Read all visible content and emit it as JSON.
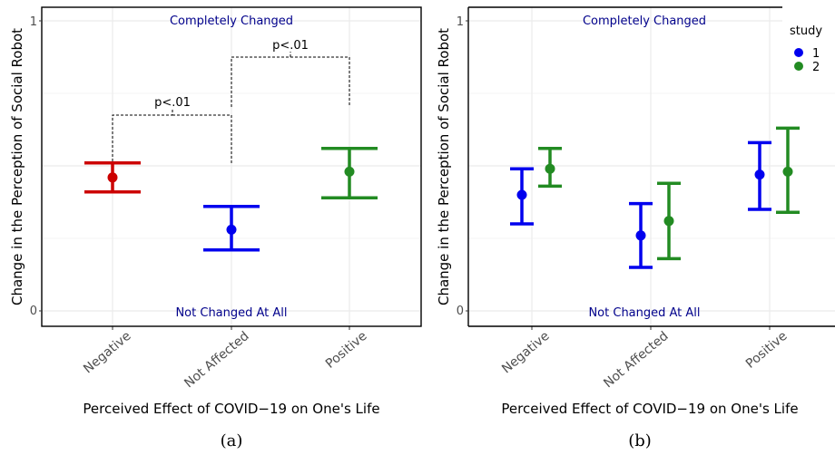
{
  "colors": {
    "red": "#cc0000",
    "blue": "#0000ee",
    "green": "#228b22",
    "annotation": "#00008b"
  },
  "chart_data": [
    {
      "type": "errorbar",
      "caption": "(a)",
      "xlabel": "Perceived Effect of COVID−19 on One's Life",
      "ylabel": "Change in the Perception of Social Robot",
      "categories": [
        "Negative",
        "Not Affected",
        "Positive"
      ],
      "ylim": [
        0,
        1
      ],
      "yticks": [
        "0",
        "1"
      ],
      "grid": true,
      "annotations": {
        "top": "Completely Changed",
        "bottom": "Not Changed At All"
      },
      "series": [
        {
          "points": [
            {
              "category": "Negative",
              "y": 0.46,
              "low": 0.41,
              "high": 0.51,
              "color": "#cc0000"
            },
            {
              "category": "Not Affected",
              "y": 0.28,
              "low": 0.21,
              "high": 0.36,
              "color": "#0000ee"
            },
            {
              "category": "Positive",
              "y": 0.48,
              "low": 0.39,
              "high": 0.56,
              "color": "#228b22"
            }
          ]
        }
      ],
      "significance": [
        {
          "from": "Negative",
          "to": "Not Affected",
          "label": "p<.01"
        },
        {
          "from": "Not Affected",
          "to": "Positive",
          "label": "p<.01"
        }
      ]
    },
    {
      "type": "errorbar",
      "caption": "(b)",
      "xlabel": "Perceived Effect of COVID−19 on One's Life",
      "ylabel": "Change in the Perception of Social Robot",
      "categories": [
        "Negative",
        "Not Affected",
        "Positive"
      ],
      "ylim": [
        0,
        1
      ],
      "yticks": [
        "0",
        "1"
      ],
      "grid": true,
      "annotations": {
        "top": "Completely Changed",
        "bottom": "Not Changed At All"
      },
      "legend": {
        "title": "study",
        "position": "right"
      },
      "series": [
        {
          "name": "1",
          "color": "#0000ee",
          "points": [
            {
              "category": "Negative",
              "y": 0.4,
              "low": 0.3,
              "high": 0.49
            },
            {
              "category": "Not Affected",
              "y": 0.26,
              "low": 0.15,
              "high": 0.37
            },
            {
              "category": "Positive",
              "y": 0.47,
              "low": 0.35,
              "high": 0.58
            }
          ]
        },
        {
          "name": "2",
          "color": "#228b22",
          "points": [
            {
              "category": "Negative",
              "y": 0.49,
              "low": 0.43,
              "high": 0.56
            },
            {
              "category": "Not Affected",
              "y": 0.31,
              "low": 0.18,
              "high": 0.44
            },
            {
              "category": "Positive",
              "y": 0.48,
              "low": 0.34,
              "high": 0.63
            }
          ]
        }
      ]
    }
  ]
}
